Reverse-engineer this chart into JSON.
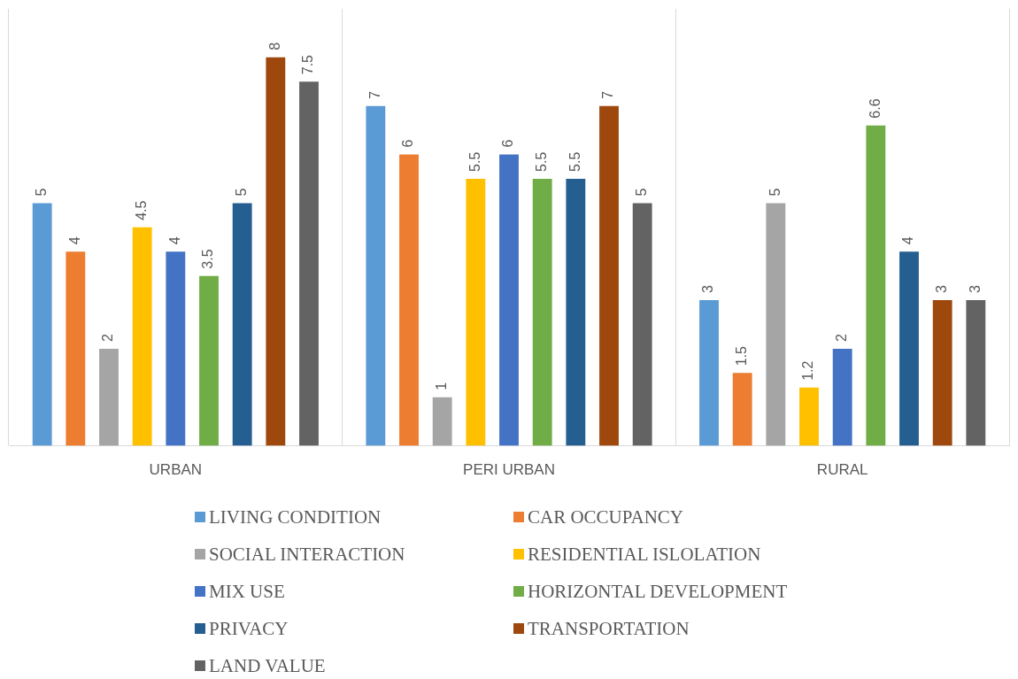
{
  "chart_data": {
    "type": "bar",
    "categories": [
      "URBAN",
      "PERI URBAN",
      "RURAL"
    ],
    "series": [
      {
        "name": "LIVING CONDITION",
        "color": "#5b9bd5",
        "values": [
          5,
          7,
          3
        ]
      },
      {
        "name": "CAR OCCUPANCY",
        "color": "#ed7d31",
        "values": [
          4,
          6,
          1.5
        ]
      },
      {
        "name": "SOCIAL INTERACTION",
        "color": "#a5a5a5",
        "values": [
          2,
          1,
          5
        ]
      },
      {
        "name": "RESIDENTIAL ISLOLATION",
        "color": "#ffc000",
        "values": [
          4.5,
          5.5,
          1.2
        ]
      },
      {
        "name": "MIX USE",
        "color": "#4472c4",
        "values": [
          4,
          6,
          2
        ]
      },
      {
        "name": "HORIZONTAL DEVELOPMENT",
        "color": "#70ad47",
        "values": [
          3.5,
          5.5,
          6.6
        ]
      },
      {
        "name": "PRIVACY",
        "color": "#255e91",
        "values": [
          5,
          5.5,
          4
        ]
      },
      {
        "name": "TRANSPORTATION",
        "color": "#9e480e",
        "values": [
          8,
          7,
          3
        ]
      },
      {
        "name": "LAND VALUE",
        "color": "#636363",
        "values": [
          7.5,
          5,
          3
        ]
      }
    ],
    "data_labels": true,
    "grid": "x",
    "legend": "bottom"
  }
}
